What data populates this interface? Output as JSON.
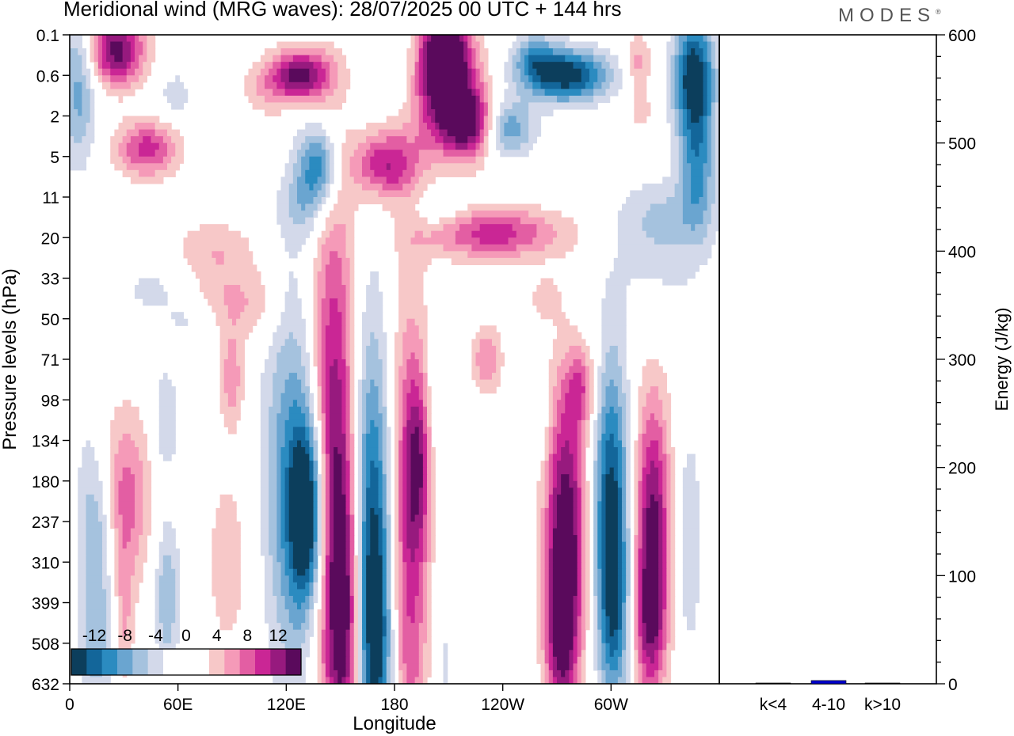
{
  "title": "Meridional wind (MRG waves):  28/07/2025  00 UTC  + 144 hrs",
  "brand": "MODES",
  "brand_mark": "®",
  "colors": {
    "neg": [
      "#0c3e5c",
      "#13669a",
      "#2b8bc0",
      "#6aa5d0",
      "#a5c2de",
      "#d3d9ea"
    ],
    "pos": [
      "#f7c8c8",
      "#f59ab8",
      "#e35ea3",
      "#ca2695",
      "#971a7e",
      "#5a0a5c"
    ],
    "bar": "#0000cc"
  },
  "chart_data": [
    {
      "type": "heatmap",
      "title": "Meridional wind (MRG waves):  28/07/2025  00 UTC  + 144 hrs",
      "xlabel": "Longitude",
      "ylabel": "Pressure levels (hPa)",
      "x_ticks": [
        "0",
        "60E",
        "120E",
        "180",
        "120W",
        "60W"
      ],
      "x_tick_degrees": [
        0,
        60,
        120,
        180,
        240,
        300
      ],
      "xlim": [
        0,
        360
      ],
      "y_ticks": [
        "0.1",
        "0.6",
        "2",
        "5",
        "11",
        "20",
        "33",
        "50",
        "71",
        "98",
        "134",
        "180",
        "237",
        "310",
        "399",
        "508",
        "632"
      ],
      "colorbar": {
        "levels": [
          -14,
          -12,
          -10,
          -8,
          -6,
          -4,
          -2,
          2,
          4,
          6,
          8,
          10,
          12,
          14
        ],
        "labels": [
          "-12",
          "-8",
          "-4",
          "0",
          "4",
          "8",
          "12"
        ],
        "label_values": [
          -12,
          -8,
          -4,
          0,
          4,
          8,
          12
        ]
      },
      "features": [
        {
          "lon": 132,
          "lev": 11.8,
          "peak": -14,
          "dlon": 7,
          "dlev": 1.6
        },
        {
          "lon": 124,
          "lev": 11,
          "peak": -8,
          "dlon": 12,
          "dlev": 3.5
        },
        {
          "lon": 146,
          "lev": 10.5,
          "peak": 13,
          "dlon": 9,
          "dlev": 4.5
        },
        {
          "lon": 153,
          "lev": 14.5,
          "peak": 10,
          "dlon": 7,
          "dlev": 2.5
        },
        {
          "lon": 167,
          "lev": 12.5,
          "peak": -12,
          "dlon": 8,
          "dlev": 3.8
        },
        {
          "lon": 170,
          "lev": 15.5,
          "peak": -7,
          "dlon": 7,
          "dlev": 2.5
        },
        {
          "lon": 188,
          "lev": 12.8,
          "peak": 9,
          "dlon": 8,
          "dlev": 4.5
        },
        {
          "lon": 193,
          "lev": 10.5,
          "peak": 7,
          "dlon": 5,
          "dlev": 1.5
        },
        {
          "lon": 203,
          "lev": 9,
          "peak": -3,
          "dlon": 4,
          "dlev": 1
        },
        {
          "lon": 231,
          "lev": 8,
          "peak": 6,
          "dlon": 6,
          "dlev": 0.6
        },
        {
          "lon": 207,
          "lev": 15.5,
          "peak": -2.5,
          "dlon": 5,
          "dlev": 2
        },
        {
          "lon": 275,
          "lev": 12.3,
          "peak": 14,
          "dlon": 8,
          "dlev": 2.6
        },
        {
          "lon": 272,
          "lev": 14.8,
          "peak": 8,
          "dlon": 6,
          "dlev": 1.5
        },
        {
          "lon": 300,
          "lev": 11.7,
          "peak": -13,
          "dlon": 7,
          "dlev": 2.6
        },
        {
          "lon": 302,
          "lev": 14.5,
          "peak": -6,
          "dlon": 6,
          "dlev": 1.5
        },
        {
          "lon": 323,
          "lev": 12.3,
          "peak": 13,
          "dlon": 7,
          "dlev": 2.4
        },
        {
          "lon": 321,
          "lev": 14.6,
          "peak": 6,
          "dlon": 6,
          "dlev": 1.2
        },
        {
          "lon": 284,
          "lev": 8.7,
          "peak": 6,
          "dlon": 6,
          "dlev": 0.7
        },
        {
          "lon": 260,
          "lev": 9.6,
          "peak": -3,
          "dlon": 4,
          "dlev": 0.6
        },
        {
          "lon": 343,
          "lev": 12.5,
          "peak": -4,
          "dlon": 5,
          "dlev": 2
        },
        {
          "lon": 31,
          "lev": 11.4,
          "peak": 7,
          "dlon": 10,
          "dlev": 1.5
        },
        {
          "lon": 17,
          "lev": 12.5,
          "peak": -5,
          "dlon": 6,
          "dlev": 1.5
        },
        {
          "lon": 53,
          "lev": 9.5,
          "peak": -4,
          "dlon": 5,
          "dlev": 1
        },
        {
          "lon": 54,
          "lev": 13.8,
          "peak": -6,
          "dlon": 5,
          "dlev": 1.3
        },
        {
          "lon": 15,
          "lev": 15.2,
          "peak": -4,
          "dlon": 7,
          "dlev": 1
        },
        {
          "lon": 10,
          "lev": 12,
          "peak": -3,
          "dlon": 6,
          "dlev": 2
        },
        {
          "lon": 30,
          "lev": 14.5,
          "peak": 4,
          "dlon": 4,
          "dlev": 1.3
        },
        {
          "lon": 90,
          "lev": 8.5,
          "peak": 5,
          "dlon": 5,
          "dlev": 0.8
        },
        {
          "lon": 88,
          "lev": 13,
          "peak": 3,
          "dlon": 10,
          "dlev": 2
        },
        {
          "lon": 80,
          "lev": 6.5,
          "peak": 3,
          "dlon": 12,
          "dlev": 0.8
        },
        {
          "lon": 45,
          "lev": 6.3,
          "peak": -2.5,
          "dlon": 15,
          "dlev": 0.5
        },
        {
          "lon": 26,
          "lev": 0.4,
          "peak": 13,
          "dlon": 11,
          "dlev": 0.6
        },
        {
          "lon": 43,
          "lev": 2.8,
          "peak": 9,
          "dlon": 12,
          "dlev": 0.5
        },
        {
          "lon": 5,
          "lev": 1.2,
          "peak": -7,
          "dlon": 7,
          "dlev": 1.4
        },
        {
          "lon": 58,
          "lev": 1.5,
          "peak": -3,
          "dlon": 8,
          "dlev": 0.5
        },
        {
          "lon": 128,
          "lev": 1.0,
          "peak": 13,
          "dlon": 12,
          "dlev": 0.45
        },
        {
          "lon": 108,
          "lev": 1.4,
          "peak": 3,
          "dlon": 10,
          "dlev": 0.5
        },
        {
          "lon": 138,
          "lev": 3.2,
          "peak": -10,
          "dlon": 8,
          "dlev": 0.7
        },
        {
          "lon": 130,
          "lev": 4.2,
          "peak": -4,
          "dlon": 10,
          "dlev": 0.6
        },
        {
          "lon": 175,
          "lev": 3.2,
          "peak": 10,
          "dlon": 13,
          "dlev": 0.6
        },
        {
          "lon": 207,
          "lev": 1.3,
          "peak": 14,
          "dlon": 13,
          "dlev": 1.0
        },
        {
          "lon": 222,
          "lev": 2.2,
          "peak": 12,
          "dlon": 10,
          "dlev": 0.6
        },
        {
          "lon": 208,
          "lev": 0.35,
          "peak": 11,
          "dlon": 9,
          "dlev": 0.6
        },
        {
          "lon": 188,
          "lev": 1.0,
          "peak": -3,
          "dlon": 8,
          "dlev": 0.8
        },
        {
          "lon": 242,
          "lev": 2.3,
          "peak": -8,
          "dlon": 11,
          "dlev": 0.5
        },
        {
          "lon": 275,
          "lev": 1.0,
          "peak": -14,
          "dlon": 17,
          "dlev": 0.45
        },
        {
          "lon": 258,
          "lev": 0.5,
          "peak": -6,
          "dlon": 8,
          "dlev": 0.4
        },
        {
          "lon": 235,
          "lev": 4.9,
          "peak": 9,
          "dlon": 27,
          "dlev": 0.45
        },
        {
          "lon": 205,
          "lev": 4.3,
          "peak": -3,
          "dlon": 10,
          "dlev": 0.35
        },
        {
          "lon": 315,
          "lev": 0.7,
          "peak": 5,
          "dlon": 5,
          "dlev": 0.5
        },
        {
          "lon": 317,
          "lev": 1.9,
          "peak": 3,
          "dlon": 5,
          "dlev": 0.4
        },
        {
          "lon": 346,
          "lev": 1.0,
          "peak": -14,
          "dlon": 8,
          "dlev": 1.0
        },
        {
          "lon": 348,
          "lev": 3.2,
          "peak": -8,
          "dlon": 7,
          "dlev": 1.1
        },
        {
          "lon": 330,
          "lev": 4.5,
          "peak": -3,
          "dlon": 18,
          "dlev": 0.6
        },
        {
          "lon": 80,
          "lev": 5.2,
          "peak": 3,
          "dlon": 17,
          "dlev": 0.5
        },
        {
          "lon": 102,
          "lev": 6.6,
          "peak": 3.5,
          "dlon": 12,
          "dlev": 0.7
        },
        {
          "lon": 68,
          "lev": 7.1,
          "peak": -3,
          "dlon": 10,
          "dlev": 0.4
        },
        {
          "lon": 263,
          "lev": 6.5,
          "peak": 3,
          "dlon": 6,
          "dlev": 0.4
        },
        {
          "lon": 327,
          "lev": 5.5,
          "peak": -2.5,
          "dlon": 20,
          "dlev": 1.3
        }
      ]
    },
    {
      "type": "bar",
      "categories": [
        "k<4",
        "4-10",
        "k>10"
      ],
      "values": [
        0.2,
        3,
        0.2
      ],
      "ylabel": "Energy (J/kg)",
      "ylim": [
        0,
        600
      ],
      "y_ticks": [
        "0",
        "100",
        "200",
        "300",
        "400",
        "500",
        "600"
      ],
      "y_tick_values": [
        0,
        100,
        200,
        300,
        400,
        500,
        600
      ]
    }
  ]
}
